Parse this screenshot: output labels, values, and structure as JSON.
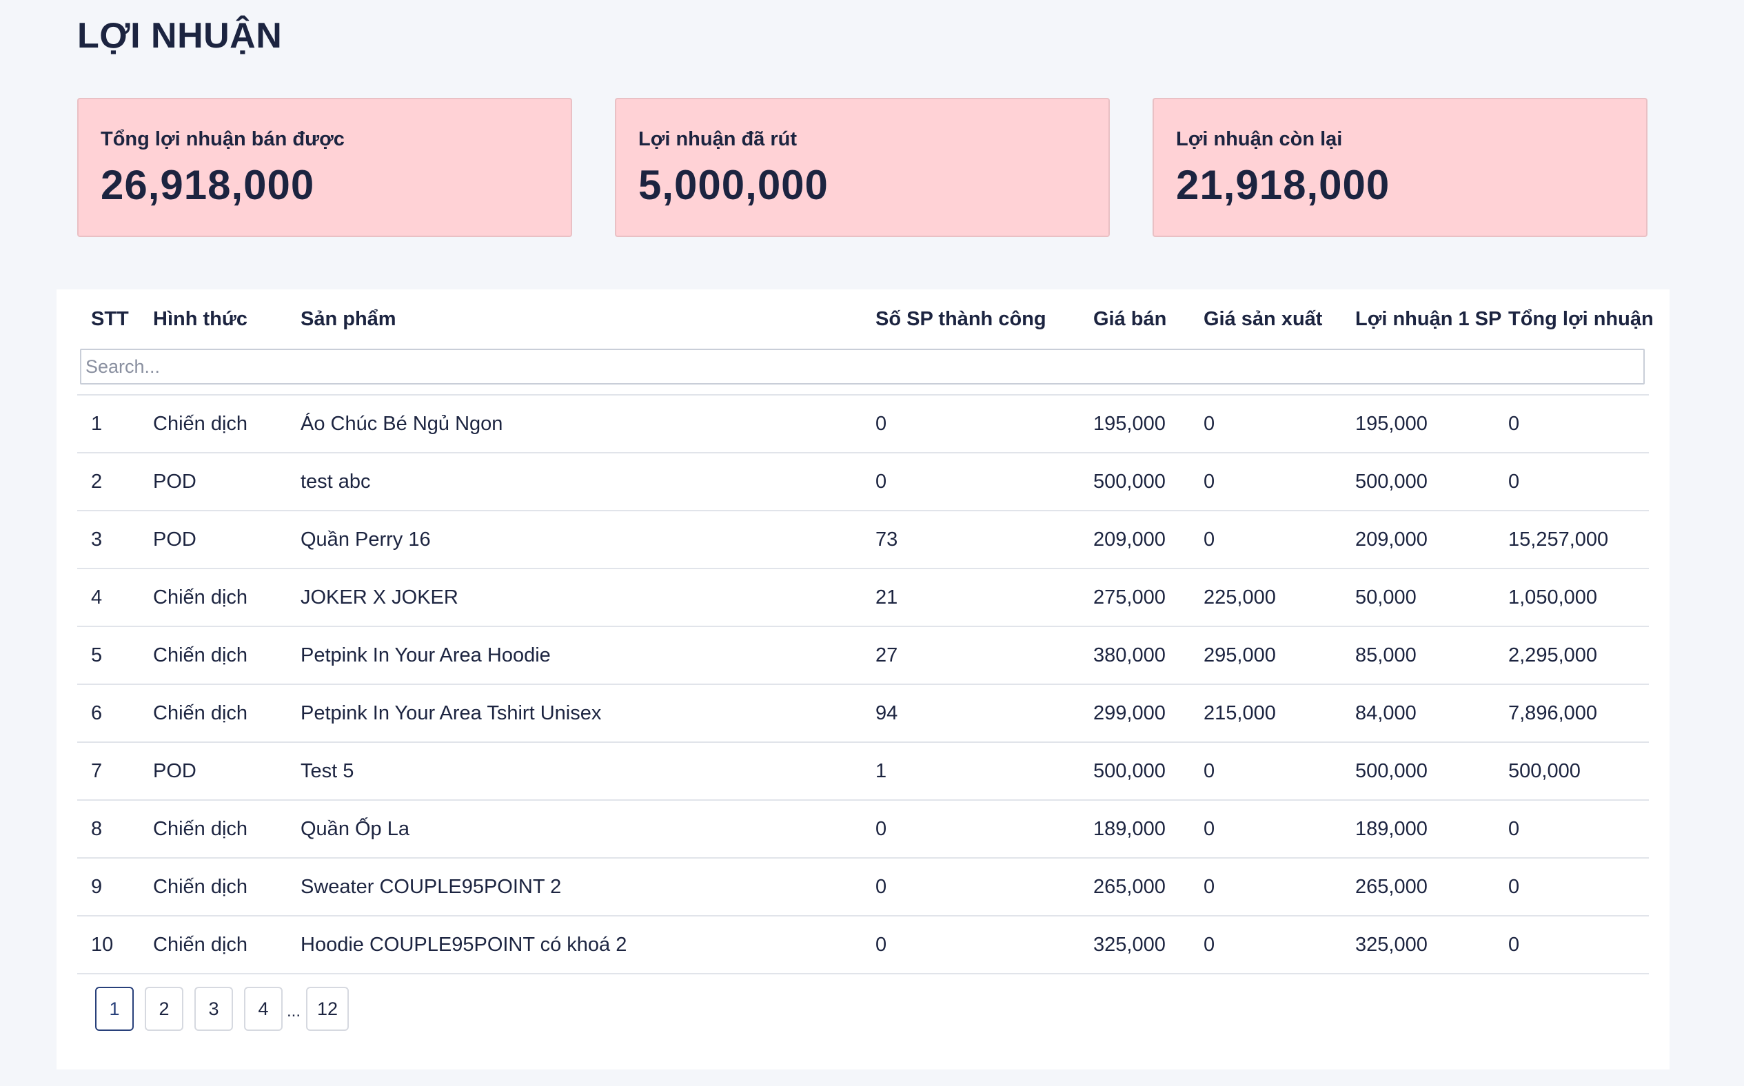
{
  "page": {
    "title": "LỢI NHUẬN"
  },
  "stats": [
    {
      "label": "Tổng lợi nhuận bán được",
      "value": "26,918,000"
    },
    {
      "label": "Lợi nhuận đã rút",
      "value": "5,000,000"
    },
    {
      "label": "Lợi nhuận còn lại",
      "value": "21,918,000"
    }
  ],
  "table": {
    "columns": [
      "STT",
      "Hình thức",
      "Sản phẩm",
      "Số SP thành công",
      "Giá bán",
      "Giá sản xuất",
      "Lợi nhuận 1 SP",
      "Tổng lợi nhuận"
    ],
    "search_placeholder": "Search...",
    "rows": [
      [
        "1",
        "Chiến dịch",
        "Áo Chúc Bé Ngủ Ngon",
        "0",
        "195,000",
        "0",
        "195,000",
        "0"
      ],
      [
        "2",
        "POD",
        "test abc",
        "0",
        "500,000",
        "0",
        "500,000",
        "0"
      ],
      [
        "3",
        "POD",
        "Quần Perry 16",
        "73",
        "209,000",
        "0",
        "209,000",
        "15,257,000"
      ],
      [
        "4",
        "Chiến dịch",
        "JOKER X JOKER",
        "21",
        "275,000",
        "225,000",
        "50,000",
        "1,050,000"
      ],
      [
        "5",
        "Chiến dịch",
        "Petpink In Your Area Hoodie",
        "27",
        "380,000",
        "295,000",
        "85,000",
        "2,295,000"
      ],
      [
        "6",
        "Chiến dịch",
        "Petpink In Your Area Tshirt Unisex",
        "94",
        "299,000",
        "215,000",
        "84,000",
        "7,896,000"
      ],
      [
        "7",
        "POD",
        "Test 5",
        "1",
        "500,000",
        "0",
        "500,000",
        "500,000"
      ],
      [
        "8",
        "Chiến dịch",
        "Quần Ốp La",
        "0",
        "189,000",
        "0",
        "189,000",
        "0"
      ],
      [
        "9",
        "Chiến dịch",
        "Sweater COUPLE95POINT 2",
        "0",
        "265,000",
        "0",
        "265,000",
        "0"
      ],
      [
        "10",
        "Chiến dịch",
        "Hoodie COUPLE95POINT có khoá 2",
        "0",
        "325,000",
        "0",
        "325,000",
        "0"
      ]
    ]
  },
  "pagination": {
    "pages": [
      "1",
      "2",
      "3",
      "4"
    ],
    "ellipsis": "...",
    "last": "12",
    "current": "1"
  },
  "colors": {
    "card_bg": "#ffd2d6",
    "text": "#1c2440",
    "active_page": "#28407a"
  }
}
